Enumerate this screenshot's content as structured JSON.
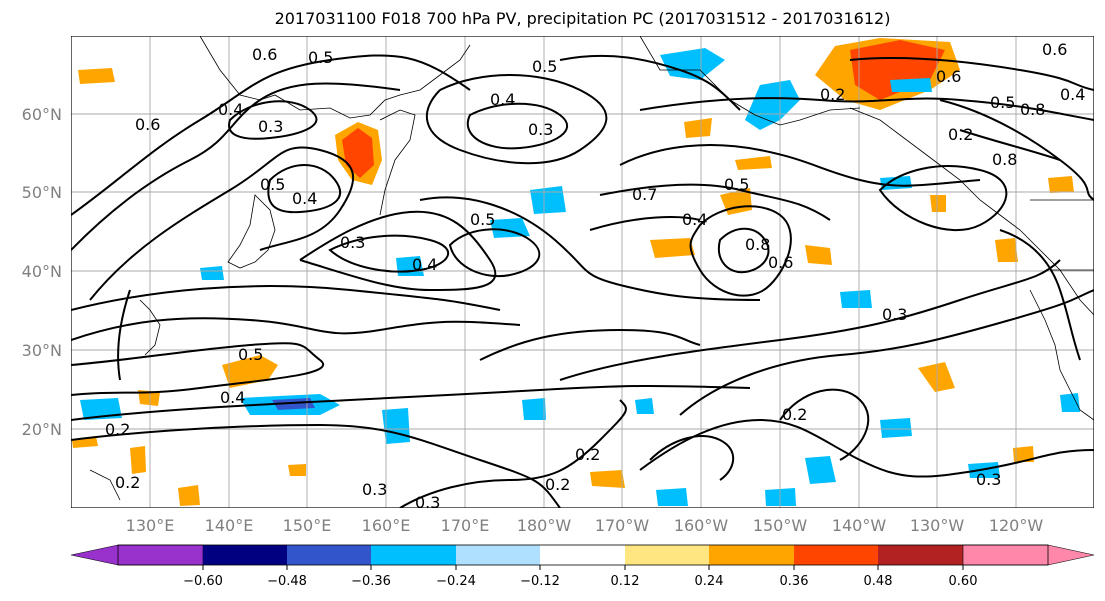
{
  "title": "2017031100 F018 700 hPa PV, precipitation PC (2017031512 - 2017031612)",
  "map": {
    "lat_labels": [
      "60°N",
      "50°N",
      "40°N",
      "30°N",
      "20°N"
    ],
    "lon_labels": [
      "130°E",
      "140°E",
      "150°E",
      "160°E",
      "170°E",
      "180°W",
      "170°W",
      "160°W",
      "150°W",
      "140°W",
      "130°W",
      "120°W"
    ],
    "contour_labels": [
      "0.6",
      "0.5",
      "0.5",
      "0.4",
      "0.3",
      "0.6",
      "0.4",
      "0.3",
      "0.4",
      "0.5",
      "0.4",
      "0.3",
      "0.5",
      "0.7",
      "0.5",
      "0.4",
      "0.8",
      "0.6",
      "0.3",
      "0.2",
      "0.2",
      "0.2",
      "0.3",
      "0.5",
      "0.4",
      "0.2",
      "0.2",
      "0.3",
      "0.8",
      "0.2",
      "0.5",
      "0.4",
      "0.6",
      "0.2",
      "0.6",
      "0.8",
      "0.3"
    ],
    "colors": {
      "neg_060": "#9932cc",
      "neg_048": "#000080",
      "neg_036": "#3355cc",
      "neg_024": "#00bfff",
      "neg_012": "#b0e0ff",
      "neutral": "#ffffff",
      "pos_012": "#ffe680",
      "pos_024": "#ffa500",
      "pos_036": "#ff4500",
      "pos_048": "#b22222",
      "pos_060": "#ff88aa"
    }
  },
  "colorbar": {
    "ticks": [
      "−0.60",
      "−0.48",
      "−0.36",
      "−0.24",
      "−0.12",
      "0.12",
      "0.24",
      "0.36",
      "0.48",
      "0.60"
    ],
    "bins": [
      "#9932cc",
      "#000080",
      "#3355cc",
      "#00bfff",
      "#b0e0ff",
      "#ffffff",
      "#ffe680",
      "#ffa500",
      "#ff4500",
      "#b22222",
      "#ff88aa"
    ]
  }
}
